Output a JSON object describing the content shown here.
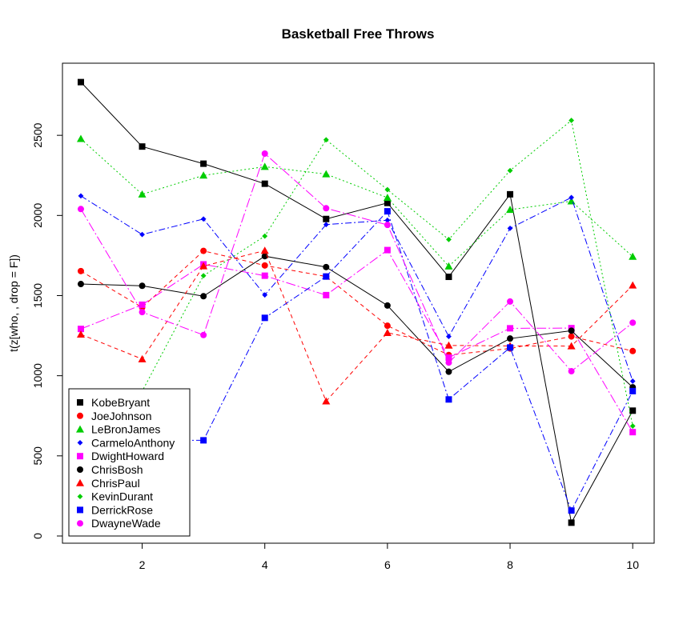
{
  "chart_data": {
    "type": "line",
    "title": "Basketball Free Throws",
    "xlabel": "",
    "ylabel": "t(z[who, , drop = F])",
    "x": [
      1,
      2,
      3,
      4,
      5,
      6,
      7,
      8,
      9,
      10
    ],
    "xticks": [
      2,
      4,
      6,
      8,
      10
    ],
    "yticks": [
      0,
      500,
      1000,
      1500,
      2000,
      2500
    ],
    "xlim": [
      0.7,
      10.35
    ],
    "ylim": [
      -45,
      2950
    ],
    "grid": false,
    "legend_position": "bottom-left",
    "series": [
      {
        "name": "KobeBryant",
        "color": "#000000",
        "marker": "square",
        "dash": "",
        "values": [
          2832,
          2430,
          2323,
          2198,
          1978,
          2078,
          1617,
          2132,
          83,
          782
        ]
      },
      {
        "name": "JoeJohnson",
        "color": "#ff0000",
        "marker": "circle",
        "dash": "5,4",
        "values": [
          1653,
          1426,
          1779,
          1688,
          1619,
          1312,
          1129,
          1170,
          1245,
          1154
        ]
      },
      {
        "name": "LeBronJames",
        "color": "#00cd00",
        "marker": "triangle",
        "dash": "2,3",
        "values": [
          2478,
          2132,
          2250,
          2304,
          2258,
          2111,
          1683,
          2036,
          2089,
          1743
        ]
      },
      {
        "name": "CarmeloAnthony",
        "color": "#0000ff",
        "marker": "diamond",
        "dash": "8,3,2,3",
        "values": [
          2122,
          1881,
          1978,
          1504,
          1943,
          1970,
          1245,
          1920,
          2112,
          966
        ]
      },
      {
        "name": "DwightHoward",
        "color": "#ff00ff",
        "marker": "square",
        "dash": "12,3,2,3",
        "values": [
          1292,
          1443,
          1695,
          1624,
          1503,
          1784,
          1113,
          1296,
          1297,
          648
        ]
      },
      {
        "name": "ChrisBosh",
        "color": "#000000",
        "marker": "circle",
        "dash": "",
        "values": [
          1572,
          1561,
          1496,
          1746,
          1678,
          1438,
          1025,
          1232,
          1281,
          928
        ]
      },
      {
        "name": "ChrisPaul",
        "color": "#ff0000",
        "marker": "triangle",
        "dash": "5,4",
        "values": [
          1258,
          1104,
          1684,
          1781,
          841,
          1268,
          1189,
          1186,
          1185,
          1564
        ]
      },
      {
        "name": "KevinDurant",
        "color": "#00cd00",
        "marker": "diamond",
        "dash": "2,3",
        "values": [
          903,
          903,
          1624,
          1871,
          2472,
          2161,
          1850,
          2280,
          2593,
          686
        ]
      },
      {
        "name": "DerrickRose",
        "color": "#0000ff",
        "marker": "square",
        "dash": "8,3,2,3",
        "values": [
          597,
          597,
          597,
          1361,
          1619,
          2026,
          852,
          1176,
          159,
          904
        ]
      },
      {
        "name": "DwayneWade",
        "color": "#ff00ff",
        "marker": "circle",
        "dash": "12,3,2,3",
        "values": [
          2040,
          1397,
          1254,
          2386,
          2045,
          1941,
          1082,
          1463,
          1028,
          1331
        ]
      }
    ]
  }
}
